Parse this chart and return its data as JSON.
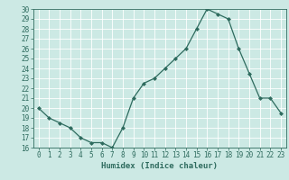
{
  "x": [
    0,
    1,
    2,
    3,
    4,
    5,
    6,
    7,
    8,
    9,
    10,
    11,
    12,
    13,
    14,
    15,
    16,
    17,
    18,
    19,
    20,
    21,
    22,
    23
  ],
  "y": [
    20,
    19,
    18.5,
    18,
    17,
    16.5,
    16.5,
    16,
    18,
    21,
    22.5,
    23,
    24,
    25,
    26,
    28,
    30,
    29.5,
    29,
    26,
    23.5,
    21,
    21,
    19.5
  ],
  "line_color": "#2e6b5e",
  "marker": "D",
  "marker_size": 2,
  "bg_color": "#cce9e4",
  "grid_color": "#ffffff",
  "xlabel": "Humidex (Indice chaleur)",
  "ylim": [
    16,
    30
  ],
  "xlim": [
    -0.5,
    23.5
  ],
  "yticks": [
    16,
    17,
    18,
    19,
    20,
    21,
    22,
    23,
    24,
    25,
    26,
    27,
    28,
    29,
    30
  ],
  "xticks": [
    0,
    1,
    2,
    3,
    4,
    5,
    6,
    7,
    8,
    9,
    10,
    11,
    12,
    13,
    14,
    15,
    16,
    17,
    18,
    19,
    20,
    21,
    22,
    23
  ],
  "tick_fontsize": 5.5,
  "xlabel_fontsize": 6.5,
  "tick_color": "#2e6b5e",
  "axis_color": "#2e6b5e"
}
